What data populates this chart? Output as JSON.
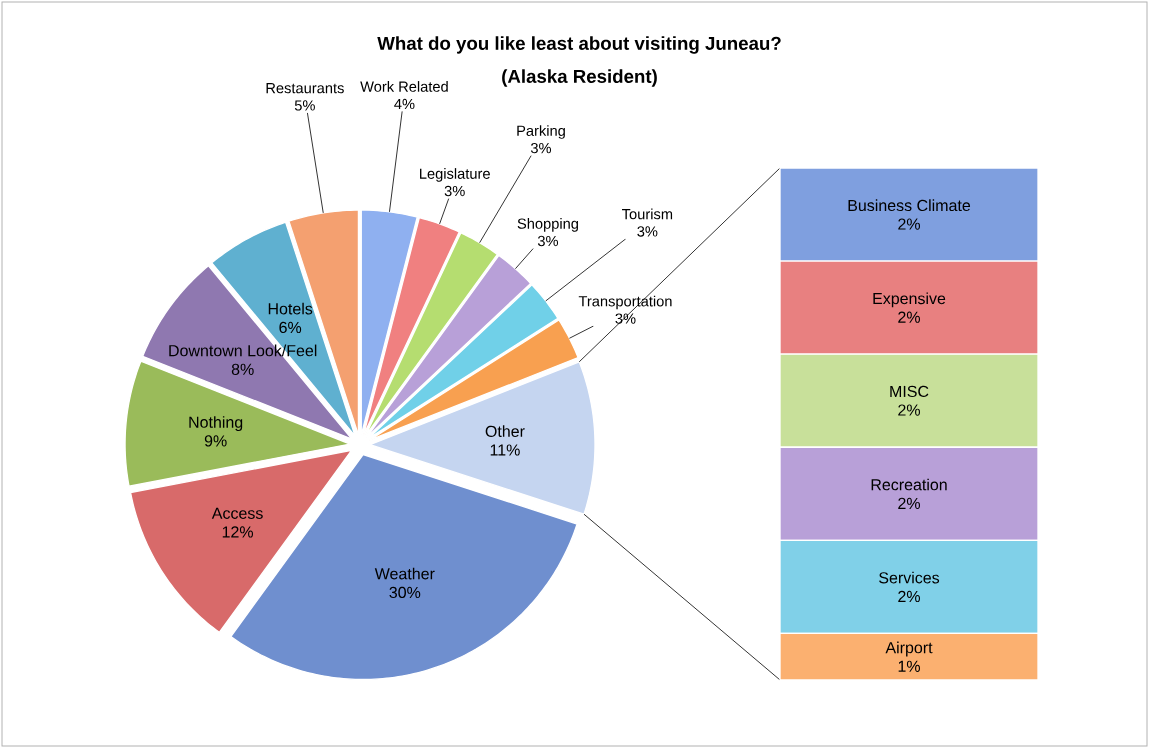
{
  "chart_data": [
    {
      "type": "pie",
      "title": "What do you like least about visiting Juneau?",
      "subtitle": "(Alaska Resident)",
      "categories": [
        "Work Related",
        "Legislature",
        "Parking",
        "Shopping",
        "Tourism",
        "Transportation",
        "Other",
        "Weather",
        "Access",
        "Nothing",
        "Downtown Look/Feel",
        "Hotels",
        "Restaurants"
      ],
      "values": [
        4,
        3,
        3,
        3,
        3,
        3,
        11,
        30,
        12,
        9,
        8,
        6,
        5
      ],
      "value_labels": [
        "4%",
        "3%",
        "3%",
        "3%",
        "3%",
        "3%",
        "11%",
        "30%",
        "12%",
        "9%",
        "8%",
        "6%",
        "5%"
      ],
      "colors": [
        "#8fb0f0",
        "#f08080",
        "#b5dd70",
        "#b8a0d8",
        "#70d0e8",
        "#f8a050",
        "#c5d5f0",
        "#6f8fcf",
        "#d86a6a",
        "#9abb5a",
        "#8f78b0",
        "#5fb0d0",
        "#f4a070"
      ]
    },
    {
      "type": "bar",
      "stacked": true,
      "categories": [
        null
      ],
      "series": [
        {
          "name": "Airport",
          "color": "#fbb070",
          "values": [
            1
          ],
          "value_labels": [
            "1%"
          ]
        },
        {
          "name": "Services",
          "color": "#80d0e8",
          "values": [
            2
          ],
          "value_labels": [
            "2%"
          ]
        },
        {
          "name": "Recreation",
          "color": "#b8a0d8",
          "values": [
            2
          ],
          "value_labels": [
            "2%"
          ]
        },
        {
          "name": "MISC",
          "color": "#c8e09a",
          "values": [
            2
          ],
          "value_labels": [
            "2%"
          ]
        },
        {
          "name": "Expensive",
          "color": "#e88080",
          "values": [
            2
          ],
          "value_labels": [
            "2%"
          ]
        },
        {
          "name": "Business Climate",
          "color": "#7f9fdf",
          "values": [
            2
          ],
          "value_labels": [
            "2%"
          ]
        }
      ]
    }
  ]
}
